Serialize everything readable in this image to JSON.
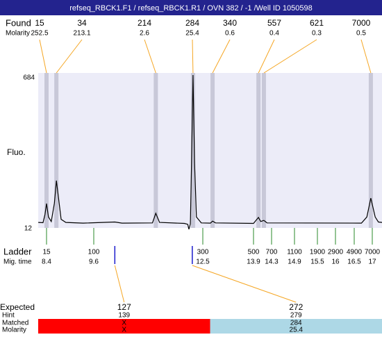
{
  "title": "refseq_RBCK1.F1 / refseq_RBCK1.R1 / OVN 382 / -1 /Well ID 1050598",
  "found_label": "Found",
  "found_molarity_label": "Molarity",
  "y_label": "Fluo.",
  "ylim": [
    12,
    684
  ],
  "found": [
    {
      "size": "15",
      "molarity": "252.5",
      "time": 8.4
    },
    {
      "size": "34",
      "molarity": "213.1",
      "time": 8.65
    },
    {
      "size": "214",
      "molarity": "2.6",
      "time": 11.25
    },
    {
      "size": "284",
      "molarity": "25.4",
      "time": 12.24
    },
    {
      "size": "340",
      "molarity": "0.6",
      "time": 12.77
    },
    {
      "size": "557",
      "molarity": "0.4",
      "time": 14.01
    },
    {
      "size": "621",
      "molarity": "0.3",
      "time": 14.13
    },
    {
      "size": "7000",
      "molarity": "0.5",
      "time": 16.96
    }
  ],
  "trace": {
    "x": [
      8.19,
      8.31,
      8.36,
      8.4,
      8.45,
      8.52,
      8.6,
      8.65,
      8.7,
      8.77,
      8.89,
      9.33,
      10.16,
      10.35,
      11.16,
      11.25,
      11.35,
      12.01,
      12.1,
      12.13,
      12.17,
      12.2,
      12.24,
      12.28,
      12.33,
      12.46,
      12.71,
      12.77,
      12.85,
      13.9,
      14.01,
      14.06,
      14.13,
      14.2,
      16.7,
      16.85,
      16.96,
      17.08,
      17.17,
      17.27
    ],
    "values": [
      36,
      35,
      70,
      119,
      60,
      40,
      120,
      220,
      150,
      50,
      36,
      33,
      38,
      33,
      34,
      76,
      36,
      32,
      28,
      6,
      30,
      300,
      684,
      300,
      60,
      34,
      33,
      42,
      34,
      32,
      58,
      40,
      45,
      34,
      33,
      60,
      143,
      60,
      38,
      36
    ]
  },
  "ladder_label": "Ladder",
  "mig_time_label": "Mig. time",
  "ladder": [
    {
      "size": "15",
      "time": 8.4
    },
    {
      "size": "100",
      "time": 9.6
    },
    {
      "size": "300",
      "time": 12.5
    },
    {
      "size": "500",
      "time": 13.9
    },
    {
      "size": "700",
      "time": 14.3
    },
    {
      "size": "1100",
      "time": 14.9
    },
    {
      "size": "1900",
      "time": 15.5
    },
    {
      "size": "2900",
      "time": 16
    },
    {
      "size": "4900",
      "time": 16.5
    },
    {
      "size": "7000",
      "time": 17
    }
  ],
  "expected_label": "Expected",
  "hint_label": "Hint",
  "matched_label": "Matched",
  "expected_molarity_label": "Molarity",
  "expected": [
    {
      "size": "127",
      "hint": "139",
      "matched": "X",
      "molarity": "X",
      "time": 10.16,
      "color": "#ff0000"
    },
    {
      "size": "272",
      "hint": "279",
      "matched": "284",
      "molarity": "25.4",
      "time": 12.22,
      "color": "#add8e6"
    }
  ]
}
